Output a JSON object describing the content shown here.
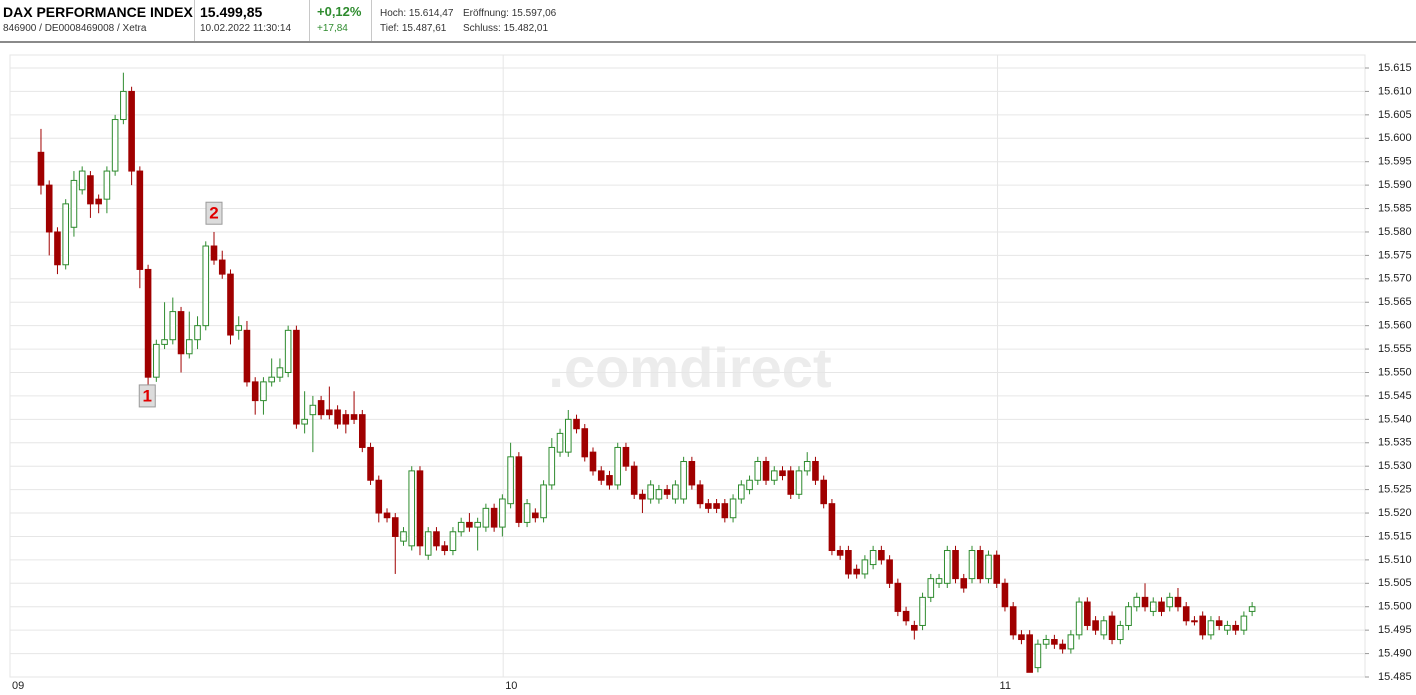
{
  "header": {
    "name": "DAX PERFORMANCE INDEX",
    "ids": "846900 / DE0008469008 / Xetra",
    "price": "15.499,85",
    "timestamp": "10.02.2022 11:30:14",
    "change_pct": "+0,12%",
    "change_abs": "+17,84",
    "high": "Hoch: 15.614,47",
    "open": "Eröffnung: 15.597,06",
    "low": "Tief: 15.487,61",
    "close": "Schluss: 15.482,01"
  },
  "chart_data": {
    "type": "candlestick",
    "watermark": ".comdirect",
    "up_color": "#2e8b2e",
    "down_color": "#a00000",
    "grid": true,
    "xlim": [
      -3.76,
      160.7
    ],
    "xticks": [
      {
        "value": -3.76,
        "label": "09"
      },
      {
        "value": 56.1,
        "label": "10"
      },
      {
        "value": 116.1,
        "label": "11"
      }
    ],
    "ylim": [
      15485,
      15615
    ],
    "yticks": [
      {
        "value": 15485,
        "label": "15.485"
      },
      {
        "value": 15490,
        "label": "15.490"
      },
      {
        "value": 15495,
        "label": "15.495"
      },
      {
        "value": 15500,
        "label": "15.500"
      },
      {
        "value": 15505,
        "label": "15.505"
      },
      {
        "value": 15510,
        "label": "15.510"
      },
      {
        "value": 15515,
        "label": "15.515"
      },
      {
        "value": 15520,
        "label": "15.520"
      },
      {
        "value": 15525,
        "label": "15.525"
      },
      {
        "value": 15530,
        "label": "15.530"
      },
      {
        "value": 15535,
        "label": "15.535"
      },
      {
        "value": 15540,
        "label": "15.540"
      },
      {
        "value": 15545,
        "label": "15.545"
      },
      {
        "value": 15550,
        "label": "15.550"
      },
      {
        "value": 15555,
        "label": "15.555"
      },
      {
        "value": 15560,
        "label": "15.560"
      },
      {
        "value": 15565,
        "label": "15.565"
      },
      {
        "value": 15570,
        "label": "15.570"
      },
      {
        "value": 15575,
        "label": "15.575"
      },
      {
        "value": 15580,
        "label": "15.580"
      },
      {
        "value": 15585,
        "label": "15.585"
      },
      {
        "value": 15590,
        "label": "15.590"
      },
      {
        "value": 15595,
        "label": "15.595"
      },
      {
        "value": 15600,
        "label": "15.600"
      },
      {
        "value": 15605,
        "label": "15.605"
      },
      {
        "value": 15610,
        "label": "15.610"
      },
      {
        "value": 15615,
        "label": "15.615"
      }
    ],
    "annotations": [
      {
        "text": "1",
        "x": 12.9,
        "y": 15545
      },
      {
        "text": "2",
        "x": 21,
        "y": 15584
      }
    ],
    "open": [
      15597,
      15590,
      15580,
      15573,
      15581,
      15589,
      15592,
      15587,
      15587,
      15593,
      15604,
      15610,
      15593,
      15572,
      15549,
      15556,
      15557,
      15563,
      15554,
      15557,
      15560,
      15577,
      15574,
      15571,
      15559,
      15559,
      15548,
      15544,
      15548,
      15549,
      15550,
      15559,
      15539,
      15541,
      15544,
      15542,
      15542,
      15541,
      15541,
      15541,
      15534,
      15527,
      15520,
      15519,
      15514,
      15513,
      15529,
      15511,
      15516,
      15513,
      15512,
      15516,
      15518,
      15517,
      15517,
      15521,
      15517,
      15522,
      15532,
      15518,
      15520,
      15519,
      15526,
      15533,
      15533,
      15540,
      15538,
      15533,
      15529,
      15528,
      15526,
      15534,
      15530,
      15524,
      15523,
      15523,
      15525,
      15523,
      15523,
      15531,
      15526,
      15522,
      15522,
      15522,
      15519,
      15523,
      15525,
      15527,
      15531,
      15527,
      15529,
      15529,
      15524,
      15529,
      15531,
      15527,
      15522,
      15512,
      15512,
      15508,
      15507,
      15509,
      15512,
      15510,
      15505,
      15499,
      15496,
      15496,
      15502,
      15505,
      15505,
      15512,
      15506,
      15506,
      15512,
      15506,
      15511,
      15505,
      15500,
      15494,
      15494,
      15487,
      15492,
      15493,
      15492,
      15491,
      15494,
      15501,
      15497,
      15494,
      15498,
      15493,
      15496,
      15500,
      15502,
      15499,
      15501,
      15500,
      15502,
      15500,
      15497,
      15498,
      15494,
      15497,
      15495,
      15496,
      15495,
      15499
    ],
    "high": [
      15602,
      15591,
      15581,
      15587,
      15593,
      15594,
      15593,
      15588,
      15594,
      15605,
      15614,
      15611,
      15594,
      15573,
      15557,
      15565,
      15566,
      15564,
      15563,
      15562,
      15578,
      15580,
      15576,
      15572,
      15562,
      15561,
      15549,
      15549,
      15553,
      15553,
      15560,
      15560,
      15546,
      15545,
      15545,
      15547,
      15543,
      15542,
      15546,
      15542,
      15535,
      15528,
      15521,
      15520,
      15517,
      15530,
      15530,
      15517,
      15517,
      15514,
      15517,
      15519,
      15520,
      15519,
      15522,
      15522,
      15524,
      15535,
      15533,
      15523,
      15521,
      15527,
      15536,
      15538,
      15542,
      15541,
      15539,
      15534,
      15530,
      15529,
      15535,
      15535,
      15531,
      15525,
      15527,
      15526,
      15526,
      15527,
      15532,
      15532,
      15527,
      15523,
      15523,
      15523,
      15524,
      15527,
      15528,
      15532,
      15532,
      15530,
      15530,
      15530,
      15530,
      15533,
      15532,
      15528,
      15523,
      15513,
      15513,
      15509,
      15511,
      15513,
      15513,
      15511,
      15506,
      15500,
      15497,
      15503,
      15507,
      15507,
      15513,
      15513,
      15507,
      15513,
      15513,
      15512,
      15512,
      15506,
      15501,
      15495,
      15495,
      15493,
      15494,
      15494,
      15493,
      15495,
      15502,
      15502,
      15498,
      15498,
      15499,
      15497,
      15501,
      15503,
      15505,
      15502,
      15502,
      15503,
      15504,
      15501,
      15498,
      15499,
      15498,
      15498,
      15497,
      15497,
      15499,
      15501
    ],
    "low": [
      15588,
      15575,
      15571,
      15572,
      15579,
      15588,
      15583,
      15584,
      15584,
      15592,
      15603,
      15590,
      15568,
      15547,
      15548,
      15555,
      15556,
      15550,
      15553,
      15555,
      15559,
      15573,
      15570,
      15556,
      15557,
      15547,
      15541,
      15541,
      15547,
      15548,
      15549,
      15538,
      15537,
      15533,
      15540,
      15540,
      15538,
      15537,
      15539,
      15533,
      15526,
      15518,
      15518,
      15507,
      15513,
      15512,
      15511,
      15510,
      15512,
      15511,
      15511,
      15515,
      15516,
      15512,
      15516,
      15516,
      15515,
      15521,
      15517,
      15517,
      15518,
      15518,
      15525,
      15532,
      15532,
      15537,
      15531,
      15528,
      15526,
      15525,
      15525,
      15529,
      15523,
      15520,
      15522,
      15522,
      15523,
      15522,
      15522,
      15525,
      15521,
      15520,
      15520,
      15518,
      15518,
      15522,
      15524,
      15526,
      15526,
      15526,
      15527,
      15523,
      15523,
      15528,
      15526,
      15521,
      15511,
      15510,
      15506,
      15506,
      15506,
      15508,
      15509,
      15504,
      15498,
      15496,
      15493,
      15495,
      15501,
      15504,
      15504,
      15505,
      15503,
      15505,
      15505,
      15505,
      15504,
      15499,
      15493,
      15492,
      15486,
      15486,
      15491,
      15491,
      15490,
      15490,
      15493,
      15495,
      15494,
      15493,
      15492,
      15492,
      15495,
      15499,
      15499,
      15498,
      15498,
      15499,
      15499,
      15496,
      15496,
      15493,
      15493,
      15495,
      15494,
      15494,
      15494,
      15498
    ],
    "close": [
      15590,
      15580,
      15573,
      15586,
      15591,
      15593,
      15586,
      15586,
      15593,
      15604,
      15610,
      15593,
      15572,
      15549,
      15556,
      15557,
      15563,
      15554,
      15557,
      15560,
      15577,
      15574,
      15571,
      15558,
      15560,
      15548,
      15544,
      15548,
      15549,
      15551,
      15559,
      15539,
      15540,
      15543,
      15541,
      15541,
      15539,
      15539,
      15540,
      15534,
      15527,
      15520,
      15519,
      15515,
      15516,
      15529,
      15513,
      15516,
      15513,
      15512,
      15516,
      15518,
      15517,
      15518,
      15521,
      15517,
      15523,
      15532,
      15518,
      15522,
      15519,
      15526,
      15534,
      15537,
      15540,
      15538,
      15532,
      15529,
      15527,
      15526,
      15534,
      15530,
      15524,
      15523,
      15526,
      15525,
      15524,
      15526,
      15531,
      15526,
      15522,
      15521,
      15521,
      15519,
      15523,
      15526,
      15527,
      15531,
      15527,
      15529,
      15528,
      15524,
      15529,
      15531,
      15527,
      15522,
      15512,
      15511,
      15507,
      15507,
      15510,
      15512,
      15510,
      15505,
      15499,
      15497,
      15495,
      15502,
      15506,
      15506,
      15512,
      15506,
      15504,
      15512,
      15506,
      15511,
      15505,
      15500,
      15494,
      15493,
      15486,
      15492,
      15493,
      15492,
      15491,
      15494,
      15501,
      15496,
      15495,
      15497,
      15493,
      15496,
      15500,
      15502,
      15500,
      15501,
      15499,
      15502,
      15500,
      15497,
      15497,
      15494,
      15497,
      15496,
      15496,
      15495,
      15498,
      15500
    ]
  }
}
